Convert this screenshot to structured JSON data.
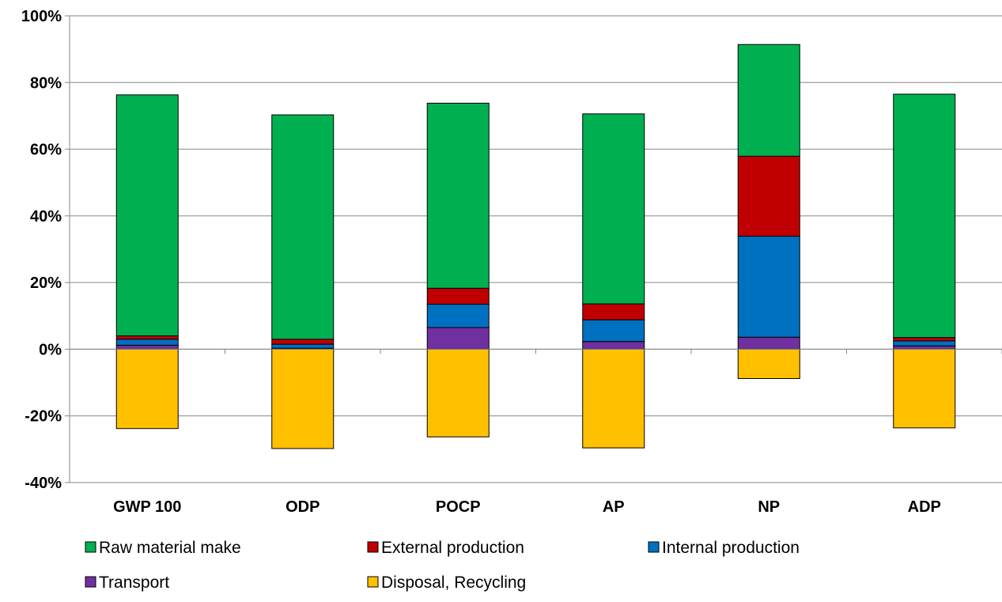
{
  "chart_data": {
    "type": "bar",
    "stacked": true,
    "categories": [
      "GWP 100",
      "ODP",
      "POCP",
      "AP",
      "NP",
      "ADP"
    ],
    "series": [
      {
        "name": "Transport",
        "color": "#7030a0",
        "values": [
          1.2,
          0.3,
          6.5,
          2.3,
          3.6,
          1.0
        ]
      },
      {
        "name": "Internal production",
        "color": "#0070c0",
        "values": [
          1.8,
          1.2,
          7.0,
          6.5,
          30.3,
          1.5
        ]
      },
      {
        "name": "External production",
        "color": "#c00000",
        "values": [
          1.0,
          1.5,
          4.8,
          4.8,
          24.0,
          1.0
        ]
      },
      {
        "name": "Raw material make",
        "color": "#00b050",
        "values": [
          72.3,
          67.3,
          55.5,
          57.0,
          33.5,
          73.0
        ]
      },
      {
        "name": "Disposal, Recycling",
        "color": "#ffc000",
        "values": [
          -23.8,
          -29.8,
          -26.3,
          -29.6,
          -8.8,
          -23.6
        ]
      }
    ],
    "legend_order": [
      "Raw material make",
      "External production",
      "Internal production",
      "Transport",
      "Disposal, Recycling"
    ],
    "legend_position": "bottom",
    "ylim": [
      -40,
      100
    ],
    "yticks": [
      -40,
      -20,
      0,
      20,
      40,
      60,
      80,
      100
    ],
    "ytick_labels": [
      "-40%",
      "-20%",
      "0%",
      "20%",
      "40%",
      "60%",
      "80%",
      "100%"
    ],
    "grid": true,
    "title": "",
    "xlabel": "",
    "ylabel": ""
  }
}
